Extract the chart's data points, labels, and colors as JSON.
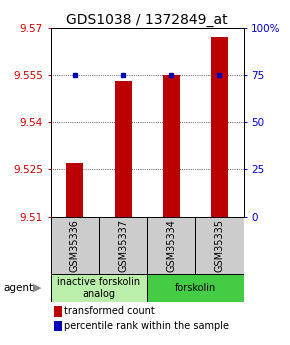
{
  "title": "GDS1038 / 1372849_at",
  "samples": [
    "GSM35336",
    "GSM35337",
    "GSM35334",
    "GSM35335"
  ],
  "red_values": [
    9.527,
    9.553,
    9.555,
    9.567
  ],
  "blue_values": [
    75,
    75,
    75,
    75
  ],
  "ylim_left": [
    9.51,
    9.57
  ],
  "ylim_right": [
    0,
    100
  ],
  "yticks_left": [
    9.51,
    9.525,
    9.54,
    9.555,
    9.57
  ],
  "yticks_right": [
    0,
    25,
    50,
    75,
    100
  ],
  "ytick_labels_right": [
    "0",
    "25",
    "50",
    "75",
    "100%"
  ],
  "bar_color": "#bb0000",
  "dot_color": "#0000bb",
  "groups": [
    {
      "label": "inactive forskolin\nanalog",
      "samples": [
        0,
        1
      ],
      "color": "#bbeeaa"
    },
    {
      "label": "forskolin",
      "samples": [
        2,
        3
      ],
      "color": "#44cc44"
    }
  ],
  "agent_label": "agent",
  "legend_red": "transformed count",
  "legend_blue": "percentile rank within the sample",
  "bar_width": 0.35,
  "background_color": "#ffffff",
  "title_fontsize": 10,
  "tick_fontsize": 7.5,
  "sample_fontsize": 7,
  "group_fontsize": 7,
  "legend_fontsize": 7
}
